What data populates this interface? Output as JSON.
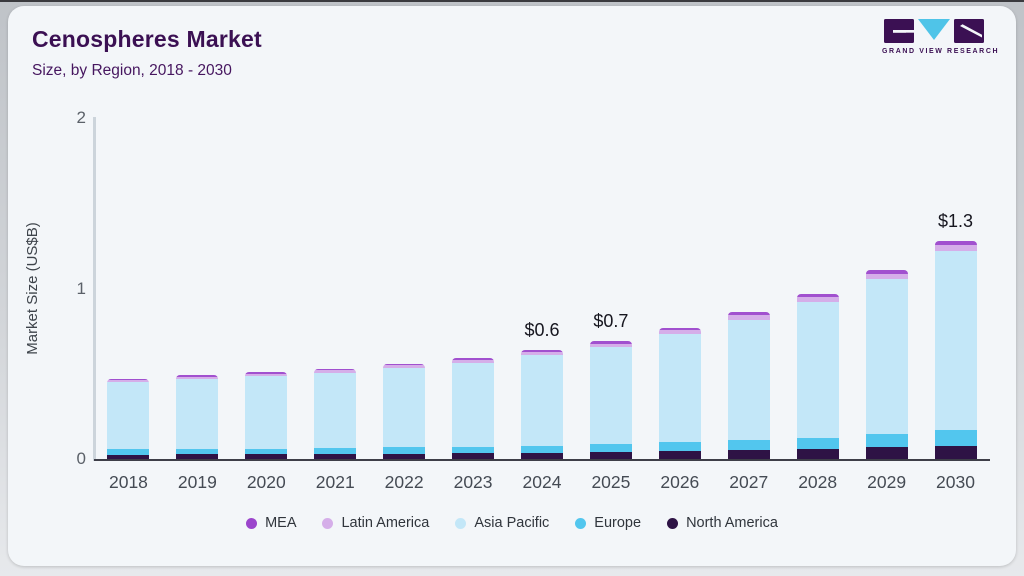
{
  "header": {
    "title": "Cenospheres Market",
    "subtitle": "Size, by Region, 2018 - 2030"
  },
  "logo": {
    "brand": "GRAND VIEW RESEARCH",
    "block_color": "#3b1053",
    "triangle_color": "#4fc4e8"
  },
  "theme": {
    "card_background": "#f3f6f9",
    "title_color": "#3b1053",
    "axis_line_color": "#3d3e48",
    "grid_line_color": "#ccd4db"
  },
  "chart_data": {
    "type": "bar",
    "stacked": true,
    "title": "Cenospheres Market Size, by Region, 2018 - 2030",
    "xlabel": "",
    "ylabel": "Market Size (US$B)",
    "ylim": [
      0,
      2
    ],
    "yticks": [
      0,
      1,
      2
    ],
    "grid": false,
    "legend_position": "bottom",
    "categories": [
      2018,
      2019,
      2020,
      2021,
      2022,
      2023,
      2024,
      2025,
      2026,
      2027,
      2028,
      2029,
      2030
    ],
    "series": [
      {
        "name": "North America",
        "color": "#2e1345",
        "values": [
          0.026,
          0.027,
          0.028,
          0.03,
          0.032,
          0.034,
          0.037,
          0.041,
          0.046,
          0.052,
          0.059,
          0.068,
          0.079
        ]
      },
      {
        "name": "Europe",
        "color": "#52c6ee",
        "values": [
          0.031,
          0.032,
          0.033,
          0.035,
          0.037,
          0.039,
          0.042,
          0.046,
          0.052,
          0.059,
          0.067,
          0.077,
          0.089
        ]
      },
      {
        "name": "Asia Pacific",
        "color": "#c3e7f8",
        "values": [
          0.392,
          0.409,
          0.426,
          0.441,
          0.465,
          0.489,
          0.531,
          0.57,
          0.635,
          0.707,
          0.797,
          0.911,
          1.05
        ]
      },
      {
        "name": "Latin America",
        "color": "#d5aee9",
        "values": [
          0.012,
          0.013,
          0.013,
          0.014,
          0.015,
          0.016,
          0.017,
          0.019,
          0.021,
          0.024,
          0.027,
          0.031,
          0.036
        ]
      },
      {
        "name": "MEA",
        "color": "#a150cf",
        "values": [
          0.009,
          0.009,
          0.01,
          0.01,
          0.011,
          0.012,
          0.013,
          0.014,
          0.016,
          0.018,
          0.02,
          0.023,
          0.026
        ]
      }
    ],
    "stack_order_top_to_bottom": [
      "MEA",
      "Latin America",
      "Asia Pacific",
      "Europe",
      "North America"
    ],
    "totals": [
      0.47,
      0.49,
      0.51,
      0.53,
      0.56,
      0.59,
      0.64,
      0.69,
      0.77,
      0.86,
      0.97,
      1.11,
      1.28
    ],
    "annotations": [
      {
        "year": 2024,
        "label": "$0.6"
      },
      {
        "year": 2025,
        "label": "$0.7"
      },
      {
        "year": 2030,
        "label": "$1.3"
      }
    ],
    "legend_items": [
      {
        "label": "MEA",
        "color": "#9b45cc"
      },
      {
        "label": "Latin America",
        "color": "#d5aee9"
      },
      {
        "label": "Asia Pacific",
        "color": "#c3e7f8"
      },
      {
        "label": "Europe",
        "color": "#52c6ee"
      },
      {
        "label": "North America",
        "color": "#2e1345"
      }
    ]
  }
}
